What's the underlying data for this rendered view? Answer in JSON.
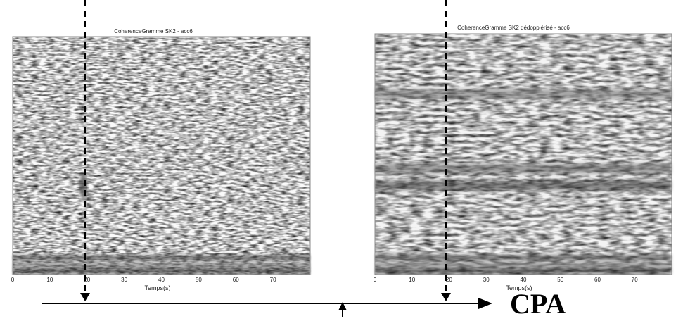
{
  "chart_data": [
    {
      "type": "heatmap",
      "title": "CoherenceGramme SK2 - acc6",
      "xlabel": "Temps(s)",
      "ylabel": "",
      "xlim": [
        0,
        80
      ],
      "x_ticks": [
        "0",
        "10",
        "20",
        "30",
        "40",
        "50",
        "60",
        "70"
      ],
      "colormap": [
        "#ffffff",
        "#000000"
      ],
      "bands": [
        {
          "y_frac": 0.93,
          "intensity": 0.75
        },
        {
          "y_frac": 0.96,
          "intensity": 0.55
        },
        {
          "y_frac": 0.985,
          "intensity": 0.85
        }
      ],
      "blobs": [
        {
          "x": 19,
          "y_frac": 0.63,
          "intensity": 0.7
        }
      ]
    },
    {
      "type": "heatmap",
      "title": "CoherenceGramme SK2 dédopplérisé - acc6",
      "xlabel": "Temps(s)",
      "ylabel": "",
      "xlim": [
        0,
        80
      ],
      "x_ticks": [
        "0",
        "10",
        "20",
        "30",
        "40",
        "50",
        "60",
        "70"
      ],
      "colormap": [
        "#ffffff",
        "#000000"
      ],
      "bands": [
        {
          "y_frac": 0.25,
          "intensity": 0.6
        },
        {
          "y_frac": 0.56,
          "intensity": 0.65
        },
        {
          "y_frac": 0.63,
          "intensity": 0.8
        },
        {
          "y_frac": 0.93,
          "intensity": 0.75
        },
        {
          "y_frac": 0.96,
          "intensity": 0.55
        },
        {
          "y_frac": 0.985,
          "intensity": 0.85
        }
      ],
      "blobs": []
    }
  ],
  "annotations": {
    "arrow_label": "CPA",
    "cpa_time_s": 20
  }
}
